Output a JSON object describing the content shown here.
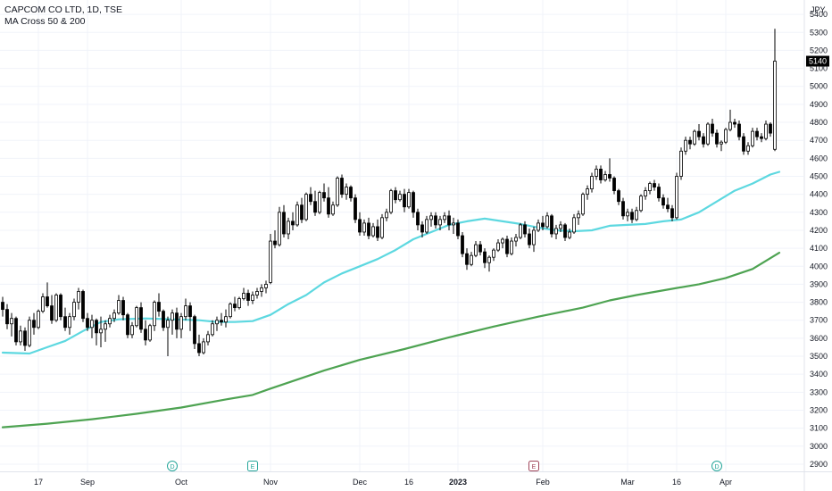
{
  "header": {
    "title": "CAPCOM CO LTD, 1D, TSE",
    "indicator": "MA Cross 50 & 200"
  },
  "chart_data": {
    "type": "candlestick",
    "currency": "JPY",
    "last_price": "5140",
    "ylim": [
      2860,
      5480
    ],
    "y_ticks": [
      2900,
      3000,
      3100,
      3200,
      3300,
      3400,
      3500,
      3600,
      3700,
      3800,
      3900,
      4000,
      4100,
      4200,
      4300,
      4400,
      4500,
      4600,
      4700,
      4800,
      4900,
      5000,
      5100,
      5200,
      5300,
      5400
    ],
    "x_ticks": [
      {
        "label": "17",
        "i": 8,
        "bold": false
      },
      {
        "label": "Sep",
        "i": 19,
        "bold": false
      },
      {
        "label": "Oct",
        "i": 40,
        "bold": false
      },
      {
        "label": "Nov",
        "i": 60,
        "bold": false
      },
      {
        "label": "Dec",
        "i": 80,
        "bold": false
      },
      {
        "label": "16",
        "i": 91,
        "bold": false
      },
      {
        "label": "2023",
        "i": 102,
        "bold": true
      },
      {
        "label": "Feb",
        "i": 121,
        "bold": false
      },
      {
        "label": "Mar",
        "i": 140,
        "bold": false
      },
      {
        "label": "16",
        "i": 151,
        "bold": false
      },
      {
        "label": "Apr",
        "i": 162,
        "bold": false
      }
    ],
    "events": [
      {
        "i": 38,
        "label": "D",
        "kind": "dividend"
      },
      {
        "i": 56,
        "label": "E",
        "kind": "earnings"
      },
      {
        "i": 119,
        "label": "E",
        "kind": "earnings-upcoming"
      },
      {
        "i": 160,
        "label": "D",
        "kind": "dividend"
      }
    ],
    "colors": {
      "up": "#ffffff",
      "down": "#000000",
      "ma50": "#5dd8e0",
      "ma200": "#4ea352"
    },
    "ohlc": [
      [
        3800,
        3830,
        3720,
        3760
      ],
      [
        3760,
        3790,
        3650,
        3680
      ],
      [
        3680,
        3740,
        3610,
        3710
      ],
      [
        3710,
        3720,
        3560,
        3580
      ],
      [
        3580,
        3670,
        3560,
        3640
      ],
      [
        3640,
        3660,
        3530,
        3560
      ],
      [
        3560,
        3720,
        3550,
        3700
      ],
      [
        3700,
        3740,
        3620,
        3660
      ],
      [
        3660,
        3760,
        3650,
        3750
      ],
      [
        3750,
        3850,
        3740,
        3830
      ],
      [
        3830,
        3910,
        3770,
        3780
      ],
      [
        3780,
        3840,
        3680,
        3700
      ],
      [
        3700,
        3850,
        3690,
        3840
      ],
      [
        3840,
        3850,
        3700,
        3720
      ],
      [
        3720,
        3770,
        3640,
        3660
      ],
      [
        3660,
        3740,
        3620,
        3720
      ],
      [
        3720,
        3820,
        3700,
        3800
      ],
      [
        3800,
        3880,
        3760,
        3860
      ],
      [
        3860,
        3870,
        3690,
        3710
      ],
      [
        3710,
        3740,
        3640,
        3660
      ],
      [
        3660,
        3730,
        3600,
        3700
      ],
      [
        3700,
        3710,
        3560,
        3630
      ],
      [
        3630,
        3720,
        3550,
        3650
      ],
      [
        3650,
        3700,
        3580,
        3680
      ],
      [
        3680,
        3730,
        3660,
        3710
      ],
      [
        3710,
        3760,
        3690,
        3740
      ],
      [
        3740,
        3840,
        3730,
        3810
      ],
      [
        3810,
        3830,
        3700,
        3730
      ],
      [
        3730,
        3740,
        3600,
        3620
      ],
      [
        3620,
        3690,
        3600,
        3670
      ],
      [
        3670,
        3780,
        3660,
        3770
      ],
      [
        3770,
        3800,
        3630,
        3650
      ],
      [
        3650,
        3700,
        3560,
        3590
      ],
      [
        3590,
        3680,
        3580,
        3670
      ],
      [
        3670,
        3810,
        3640,
        3800
      ],
      [
        3800,
        3850,
        3720,
        3750
      ],
      [
        3750,
        3760,
        3640,
        3660
      ],
      [
        3660,
        3720,
        3500,
        3700
      ],
      [
        3700,
        3760,
        3620,
        3740
      ],
      [
        3740,
        3770,
        3600,
        3650
      ],
      [
        3650,
        3740,
        3600,
        3720
      ],
      [
        3720,
        3820,
        3700,
        3780
      ],
      [
        3780,
        3800,
        3640,
        3720
      ],
      [
        3720,
        3730,
        3540,
        3570
      ],
      [
        3570,
        3620,
        3500,
        3520
      ],
      [
        3520,
        3600,
        3510,
        3580
      ],
      [
        3580,
        3640,
        3560,
        3620
      ],
      [
        3620,
        3700,
        3610,
        3680
      ],
      [
        3680,
        3720,
        3640,
        3700
      ],
      [
        3700,
        3740,
        3670,
        3690
      ],
      [
        3690,
        3760,
        3660,
        3720
      ],
      [
        3720,
        3800,
        3710,
        3790
      ],
      [
        3790,
        3830,
        3750,
        3770
      ],
      [
        3770,
        3830,
        3760,
        3820
      ],
      [
        3820,
        3880,
        3810,
        3850
      ],
      [
        3850,
        3870,
        3780,
        3810
      ],
      [
        3810,
        3860,
        3790,
        3840
      ],
      [
        3840,
        3880,
        3820,
        3860
      ],
      [
        3860,
        3900,
        3830,
        3880
      ],
      [
        3880,
        3920,
        3850,
        3900
      ],
      [
        3910,
        4180,
        3900,
        4140
      ],
      [
        4140,
        4200,
        4100,
        4120
      ],
      [
        4120,
        4330,
        4110,
        4300
      ],
      [
        4300,
        4340,
        4160,
        4180
      ],
      [
        4180,
        4270,
        4150,
        4250
      ],
      [
        4250,
        4300,
        4200,
        4230
      ],
      [
        4230,
        4360,
        4220,
        4340
      ],
      [
        4340,
        4380,
        4240,
        4260
      ],
      [
        4260,
        4410,
        4250,
        4400
      ],
      [
        4400,
        4440,
        4340,
        4360
      ],
      [
        4360,
        4420,
        4280,
        4300
      ],
      [
        4300,
        4420,
        4290,
        4410
      ],
      [
        4410,
        4460,
        4360,
        4380
      ],
      [
        4380,
        4440,
        4270,
        4290
      ],
      [
        4290,
        4360,
        4280,
        4340
      ],
      [
        4340,
        4500,
        4330,
        4490
      ],
      [
        4490,
        4510,
        4380,
        4400
      ],
      [
        4400,
        4460,
        4370,
        4440
      ],
      [
        4440,
        4450,
        4360,
        4380
      ],
      [
        4380,
        4400,
        4240,
        4260
      ],
      [
        4260,
        4300,
        4170,
        4190
      ],
      [
        4190,
        4260,
        4170,
        4240
      ],
      [
        4240,
        4270,
        4150,
        4170
      ],
      [
        4170,
        4240,
        4160,
        4220
      ],
      [
        4220,
        4260,
        4140,
        4160
      ],
      [
        4160,
        4290,
        4150,
        4270
      ],
      [
        4270,
        4320,
        4250,
        4300
      ],
      [
        4300,
        4430,
        4290,
        4420
      ],
      [
        4420,
        4440,
        4350,
        4370
      ],
      [
        4370,
        4420,
        4360,
        4400
      ],
      [
        4400,
        4430,
        4300,
        4330
      ],
      [
        4330,
        4430,
        4320,
        4410
      ],
      [
        4410,
        4420,
        4270,
        4300
      ],
      [
        4300,
        4320,
        4200,
        4230
      ],
      [
        4230,
        4250,
        4160,
        4190
      ],
      [
        4190,
        4280,
        4180,
        4260
      ],
      [
        4260,
        4300,
        4220,
        4280
      ],
      [
        4280,
        4300,
        4210,
        4230
      ],
      [
        4230,
        4280,
        4200,
        4260
      ],
      [
        4260,
        4300,
        4240,
        4280
      ],
      [
        4280,
        4310,
        4200,
        4230
      ],
      [
        4230,
        4270,
        4180,
        4240
      ],
      [
        4240,
        4260,
        4150,
        4170
      ],
      [
        4170,
        4190,
        4050,
        4070
      ],
      [
        4070,
        4100,
        3980,
        4010
      ],
      [
        4010,
        4080,
        4000,
        4060
      ],
      [
        4060,
        4140,
        4050,
        4120
      ],
      [
        4120,
        4140,
        4060,
        4080
      ],
      [
        4080,
        4100,
        3990,
        4020
      ],
      [
        4020,
        4060,
        3970,
        4050
      ],
      [
        4050,
        4100,
        4030,
        4090
      ],
      [
        4090,
        4150,
        4080,
        4130
      ],
      [
        4130,
        4160,
        4100,
        4150
      ],
      [
        4150,
        4170,
        4050,
        4070
      ],
      [
        4070,
        4160,
        4060,
        4140
      ],
      [
        4140,
        4180,
        4110,
        4160
      ],
      [
        4160,
        4240,
        4150,
        4230
      ],
      [
        4230,
        4250,
        4160,
        4180
      ],
      [
        4180,
        4210,
        4100,
        4120
      ],
      [
        4120,
        4220,
        4080,
        4200
      ],
      [
        4200,
        4260,
        4190,
        4240
      ],
      [
        4240,
        4280,
        4200,
        4220
      ],
      [
        4220,
        4300,
        4210,
        4280
      ],
      [
        4280,
        4290,
        4160,
        4180
      ],
      [
        4180,
        4230,
        4150,
        4210
      ],
      [
        4210,
        4250,
        4190,
        4230
      ],
      [
        4230,
        4240,
        4140,
        4160
      ],
      [
        4160,
        4210,
        4150,
        4190
      ],
      [
        4190,
        4290,
        4180,
        4270
      ],
      [
        4270,
        4310,
        4230,
        4290
      ],
      [
        4290,
        4410,
        4280,
        4400
      ],
      [
        4400,
        4450,
        4370,
        4430
      ],
      [
        4430,
        4520,
        4410,
        4500
      ],
      [
        4500,
        4560,
        4480,
        4540
      ],
      [
        4540,
        4560,
        4460,
        4480
      ],
      [
        4480,
        4530,
        4470,
        4510
      ],
      [
        4510,
        4600,
        4470,
        4490
      ],
      [
        4490,
        4500,
        4400,
        4420
      ],
      [
        4420,
        4430,
        4340,
        4360
      ],
      [
        4360,
        4380,
        4260,
        4280
      ],
      [
        4280,
        4320,
        4250,
        4300
      ],
      [
        4300,
        4320,
        4240,
        4260
      ],
      [
        4260,
        4330,
        4250,
        4310
      ],
      [
        4310,
        4400,
        4300,
        4390
      ],
      [
        4390,
        4440,
        4370,
        4420
      ],
      [
        4420,
        4470,
        4400,
        4460
      ],
      [
        4460,
        4480,
        4420,
        4440
      ],
      [
        4440,
        4460,
        4360,
        4380
      ],
      [
        4380,
        4400,
        4320,
        4340
      ],
      [
        4340,
        4380,
        4300,
        4320
      ],
      [
        4320,
        4340,
        4250,
        4270
      ],
      [
        4270,
        4520,
        4260,
        4500
      ],
      [
        4500,
        4660,
        4480,
        4640
      ],
      [
        4640,
        4720,
        4620,
        4700
      ],
      [
        4700,
        4720,
        4650,
        4680
      ],
      [
        4680,
        4760,
        4670,
        4750
      ],
      [
        4750,
        4790,
        4700,
        4720
      ],
      [
        4720,
        4740,
        4660,
        4680
      ],
      [
        4680,
        4800,
        4670,
        4790
      ],
      [
        4790,
        4820,
        4720,
        4740
      ],
      [
        4740,
        4760,
        4660,
        4680
      ],
      [
        4680,
        4700,
        4640,
        4690
      ],
      [
        4690,
        4770,
        4680,
        4760
      ],
      [
        4760,
        4870,
        4750,
        4800
      ],
      [
        4800,
        4820,
        4770,
        4790
      ],
      [
        4790,
        4810,
        4700,
        4720
      ],
      [
        4720,
        4740,
        4620,
        4640
      ],
      [
        4640,
        4690,
        4620,
        4670
      ],
      [
        4670,
        4770,
        4660,
        4750
      ],
      [
        4750,
        4770,
        4700,
        4720
      ],
      [
        4720,
        4740,
        4690,
        4710
      ],
      [
        4710,
        4810,
        4700,
        4790
      ],
      [
        4790,
        4800,
        4720,
        4740
      ],
      [
        4650,
        5320,
        4640,
        5140
      ]
    ],
    "series": [
      {
        "key": "ma50",
        "points": [
          [
            0,
            3520
          ],
          [
            6,
            3515
          ],
          [
            10,
            3550
          ],
          [
            14,
            3585
          ],
          [
            18,
            3640
          ],
          [
            22,
            3690
          ],
          [
            26,
            3705
          ],
          [
            32,
            3710
          ],
          [
            38,
            3705
          ],
          [
            44,
            3700
          ],
          [
            48,
            3690
          ],
          [
            52,
            3690
          ],
          [
            56,
            3695
          ],
          [
            60,
            3730
          ],
          [
            64,
            3790
          ],
          [
            68,
            3840
          ],
          [
            72,
            3910
          ],
          [
            76,
            3960
          ],
          [
            80,
            4000
          ],
          [
            84,
            4040
          ],
          [
            88,
            4090
          ],
          [
            92,
            4150
          ],
          [
            96,
            4190
          ],
          [
            100,
            4230
          ],
          [
            104,
            4250
          ],
          [
            108,
            4265
          ],
          [
            112,
            4250
          ],
          [
            116,
            4235
          ],
          [
            120,
            4215
          ],
          [
            124,
            4200
          ],
          [
            128,
            4195
          ],
          [
            132,
            4200
          ],
          [
            136,
            4225
          ],
          [
            140,
            4230
          ],
          [
            144,
            4235
          ],
          [
            148,
            4250
          ],
          [
            152,
            4260
          ],
          [
            156,
            4300
          ],
          [
            160,
            4360
          ],
          [
            164,
            4420
          ],
          [
            168,
            4460
          ],
          [
            172,
            4510
          ],
          [
            174,
            4525
          ]
        ]
      },
      {
        "key": "ma200",
        "points": [
          [
            0,
            3105
          ],
          [
            10,
            3125
          ],
          [
            20,
            3150
          ],
          [
            30,
            3180
          ],
          [
            40,
            3215
          ],
          [
            50,
            3260
          ],
          [
            56,
            3285
          ],
          [
            60,
            3320
          ],
          [
            66,
            3370
          ],
          [
            72,
            3420
          ],
          [
            80,
            3480
          ],
          [
            90,
            3540
          ],
          [
            100,
            3605
          ],
          [
            110,
            3665
          ],
          [
            120,
            3720
          ],
          [
            130,
            3770
          ],
          [
            136,
            3810
          ],
          [
            142,
            3840
          ],
          [
            150,
            3875
          ],
          [
            156,
            3900
          ],
          [
            162,
            3935
          ],
          [
            168,
            3985
          ],
          [
            174,
            4075
          ]
        ]
      }
    ]
  }
}
